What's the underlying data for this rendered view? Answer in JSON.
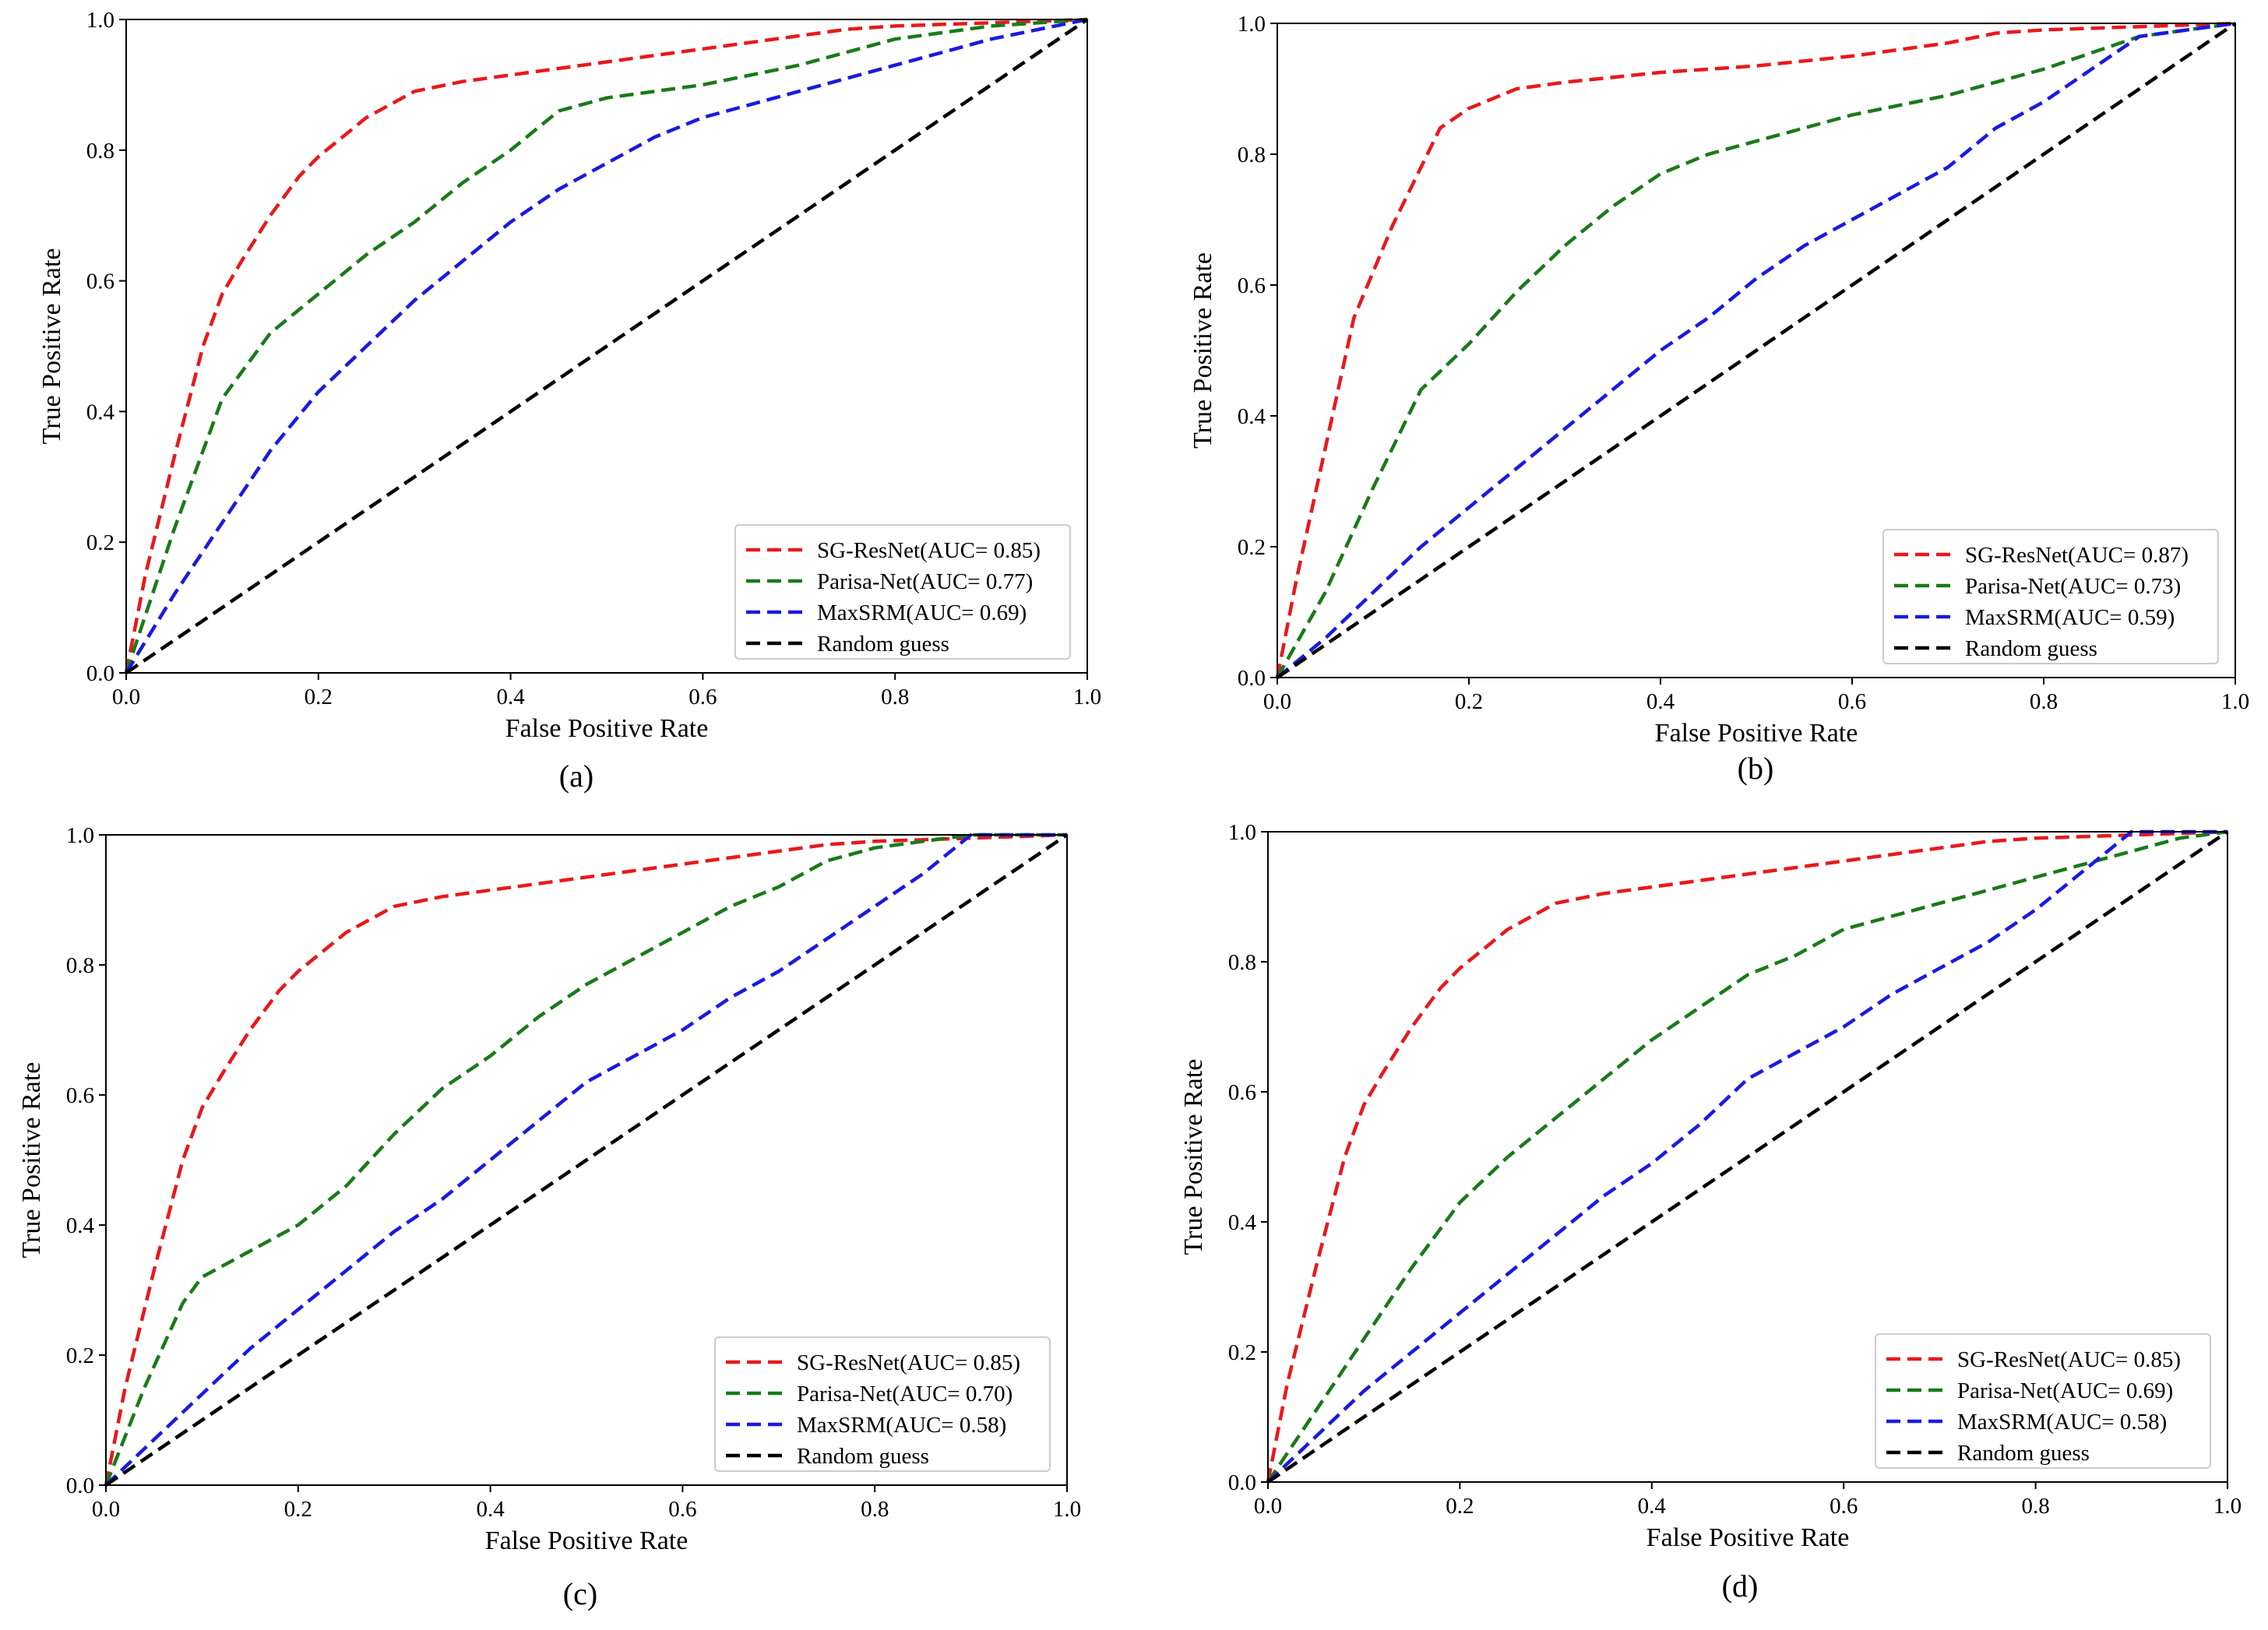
{
  "figure": {
    "panels": [
      {
        "caption": "(a)"
      },
      {
        "caption": "(b)"
      },
      {
        "caption": "(c)"
      },
      {
        "caption": "(d)"
      }
    ]
  },
  "chart_data": [
    {
      "type": "line",
      "panel": "(a)",
      "xlabel": "False Positive Rate",
      "ylabel": "True Positive Rate",
      "xlim": [
        0,
        1
      ],
      "ylim": [
        0,
        1
      ],
      "xticks": [
        "0.0",
        "0.2",
        "0.4",
        "0.6",
        "0.8",
        "1.0"
      ],
      "yticks": [
        "0.0",
        "0.2",
        "0.4",
        "0.6",
        "0.8",
        "1.0"
      ],
      "grid": false,
      "legend_position": "lower-right",
      "series": [
        {
          "name": "SG-ResNet(AUC= 0.85)",
          "color": "#e8191c",
          "x": [
            0,
            0.02,
            0.05,
            0.08,
            0.1,
            0.12,
            0.15,
            0.18,
            0.2,
            0.25,
            0.3,
            0.35,
            0.4,
            0.5,
            0.6,
            0.7,
            0.75,
            0.8,
            0.9,
            1.0
          ],
          "y": [
            0,
            0.15,
            0.33,
            0.5,
            0.58,
            0.63,
            0.7,
            0.76,
            0.79,
            0.85,
            0.89,
            0.905,
            0.915,
            0.935,
            0.955,
            0.975,
            0.985,
            0.99,
            0.995,
            1.0
          ]
        },
        {
          "name": "Parisa-Net(AUC= 0.77)",
          "color": "#1a7a1a",
          "x": [
            0,
            0.05,
            0.1,
            0.15,
            0.2,
            0.25,
            0.3,
            0.35,
            0.4,
            0.45,
            0.5,
            0.6,
            0.7,
            0.8,
            0.9,
            1.0
          ],
          "y": [
            0,
            0.22,
            0.42,
            0.52,
            0.58,
            0.64,
            0.69,
            0.75,
            0.8,
            0.86,
            0.88,
            0.9,
            0.93,
            0.97,
            0.99,
            1.0
          ]
        },
        {
          "name": "MaxSRM(AUC= 0.69)",
          "color": "#1a1ae0",
          "x": [
            0,
            0.05,
            0.1,
            0.15,
            0.2,
            0.25,
            0.3,
            0.35,
            0.4,
            0.45,
            0.5,
            0.55,
            0.6,
            0.7,
            0.8,
            0.9,
            1.0
          ],
          "y": [
            0,
            0.12,
            0.23,
            0.34,
            0.43,
            0.5,
            0.57,
            0.63,
            0.69,
            0.74,
            0.78,
            0.82,
            0.85,
            0.89,
            0.93,
            0.97,
            1.0
          ]
        },
        {
          "name": "Random guess",
          "color": "#000000",
          "x": [
            0,
            1
          ],
          "y": [
            0,
            1
          ]
        }
      ]
    },
    {
      "type": "line",
      "panel": "(b)",
      "xlabel": "False Positive Rate",
      "ylabel": "True Positive Rate",
      "xlim": [
        0,
        1
      ],
      "ylim": [
        0,
        1
      ],
      "xticks": [
        "0.0",
        "0.2",
        "0.4",
        "0.6",
        "0.8",
        "1.0"
      ],
      "yticks": [
        "0.0",
        "0.2",
        "0.4",
        "0.6",
        "0.8",
        "1.0"
      ],
      "grid": false,
      "legend_position": "lower-right",
      "series": [
        {
          "name": "SG-ResNet(AUC= 0.87)",
          "color": "#e8191c",
          "x": [
            0,
            0.02,
            0.05,
            0.08,
            0.1,
            0.12,
            0.15,
            0.17,
            0.2,
            0.25,
            0.3,
            0.4,
            0.5,
            0.6,
            0.7,
            0.75,
            0.8,
            0.9,
            1.0
          ],
          "y": [
            0,
            0.15,
            0.35,
            0.55,
            0.62,
            0.69,
            0.78,
            0.84,
            0.87,
            0.9,
            0.91,
            0.925,
            0.935,
            0.95,
            0.97,
            0.985,
            0.99,
            0.995,
            1.0
          ]
        },
        {
          "name": "Parisa-Net(AUC= 0.73)",
          "color": "#1a7a1a",
          "x": [
            0,
            0.05,
            0.1,
            0.15,
            0.2,
            0.25,
            0.3,
            0.35,
            0.4,
            0.45,
            0.5,
            0.6,
            0.7,
            0.8,
            0.9,
            1.0
          ],
          "y": [
            0,
            0.13,
            0.29,
            0.44,
            0.51,
            0.59,
            0.66,
            0.72,
            0.77,
            0.8,
            0.82,
            0.86,
            0.89,
            0.93,
            0.98,
            1.0
          ]
        },
        {
          "name": "MaxSRM(AUC= 0.59)",
          "color": "#1a1ae0",
          "x": [
            0,
            0.05,
            0.1,
            0.15,
            0.2,
            0.25,
            0.3,
            0.35,
            0.4,
            0.45,
            0.5,
            0.55,
            0.6,
            0.65,
            0.7,
            0.75,
            0.8,
            0.85,
            0.9,
            1.0
          ],
          "y": [
            0,
            0.06,
            0.13,
            0.2,
            0.26,
            0.32,
            0.38,
            0.44,
            0.5,
            0.55,
            0.61,
            0.66,
            0.7,
            0.74,
            0.78,
            0.84,
            0.88,
            0.93,
            0.98,
            1.0
          ]
        },
        {
          "name": "Random guess",
          "color": "#000000",
          "x": [
            0,
            1
          ],
          "y": [
            0,
            1
          ]
        }
      ]
    },
    {
      "type": "line",
      "panel": "(c)",
      "xlabel": "False Positive Rate",
      "ylabel": "True Positive Rate",
      "xlim": [
        0,
        1
      ],
      "ylim": [
        0,
        1
      ],
      "xticks": [
        "0.0",
        "0.2",
        "0.4",
        "0.6",
        "0.8",
        "1.0"
      ],
      "yticks": [
        "0.0",
        "0.2",
        "0.4",
        "0.6",
        "0.8",
        "1.0"
      ],
      "grid": false,
      "legend_position": "lower-right",
      "series": [
        {
          "name": "SG-ResNet(AUC= 0.85)",
          "color": "#e8191c",
          "x": [
            0,
            0.02,
            0.05,
            0.08,
            0.1,
            0.12,
            0.15,
            0.18,
            0.2,
            0.25,
            0.3,
            0.35,
            0.4,
            0.5,
            0.6,
            0.7,
            0.75,
            0.8,
            0.9,
            1.0
          ],
          "y": [
            0,
            0.15,
            0.33,
            0.5,
            0.58,
            0.63,
            0.7,
            0.76,
            0.79,
            0.85,
            0.89,
            0.905,
            0.915,
            0.935,
            0.955,
            0.975,
            0.985,
            0.99,
            0.995,
            1.0
          ]
        },
        {
          "name": "Parisa-Net(AUC= 0.70)",
          "color": "#1a7a1a",
          "x": [
            0,
            0.04,
            0.08,
            0.1,
            0.15,
            0.2,
            0.25,
            0.3,
            0.35,
            0.4,
            0.45,
            0.5,
            0.55,
            0.6,
            0.65,
            0.7,
            0.75,
            0.8,
            0.85,
            0.9,
            1.0
          ],
          "y": [
            0,
            0.15,
            0.28,
            0.32,
            0.36,
            0.4,
            0.46,
            0.54,
            0.61,
            0.66,
            0.72,
            0.77,
            0.81,
            0.85,
            0.89,
            0.92,
            0.96,
            0.98,
            0.99,
            1.0,
            1.0
          ]
        },
        {
          "name": "MaxSRM(AUC= 0.58)",
          "color": "#1a1ae0",
          "x": [
            0,
            0.05,
            0.1,
            0.15,
            0.2,
            0.25,
            0.3,
            0.35,
            0.4,
            0.45,
            0.5,
            0.55,
            0.6,
            0.65,
            0.7,
            0.75,
            0.8,
            0.85,
            0.9,
            1.0
          ],
          "y": [
            0,
            0.07,
            0.14,
            0.21,
            0.27,
            0.33,
            0.39,
            0.44,
            0.5,
            0.56,
            0.62,
            0.66,
            0.7,
            0.75,
            0.79,
            0.84,
            0.89,
            0.94,
            1.0,
            1.0
          ]
        },
        {
          "name": "Random guess",
          "color": "#000000",
          "x": [
            0,
            1
          ],
          "y": [
            0,
            1
          ]
        }
      ]
    },
    {
      "type": "line",
      "panel": "(d)",
      "xlabel": "False Positive Rate",
      "ylabel": "True Positive Rate",
      "xlim": [
        0,
        1
      ],
      "ylim": [
        0,
        1
      ],
      "xticks": [
        "0.0",
        "0.2",
        "0.4",
        "0.6",
        "0.8",
        "1.0"
      ],
      "yticks": [
        "0.0",
        "0.2",
        "0.4",
        "0.6",
        "0.8",
        "1.0"
      ],
      "grid": false,
      "legend_position": "lower-right",
      "series": [
        {
          "name": "SG-ResNet(AUC= 0.85)",
          "color": "#e8191c",
          "x": [
            0,
            0.02,
            0.05,
            0.08,
            0.1,
            0.12,
            0.15,
            0.18,
            0.2,
            0.25,
            0.3,
            0.35,
            0.4,
            0.5,
            0.6,
            0.7,
            0.75,
            0.8,
            0.9,
            1.0
          ],
          "y": [
            0,
            0.15,
            0.33,
            0.5,
            0.58,
            0.63,
            0.7,
            0.76,
            0.79,
            0.85,
            0.89,
            0.905,
            0.915,
            0.935,
            0.955,
            0.975,
            0.985,
            0.99,
            0.995,
            1.0
          ]
        },
        {
          "name": "Parisa-Net(AUC= 0.69)",
          "color": "#1a7a1a",
          "x": [
            0,
            0.05,
            0.1,
            0.15,
            0.2,
            0.25,
            0.3,
            0.35,
            0.4,
            0.45,
            0.5,
            0.55,
            0.6,
            0.65,
            0.7,
            0.75,
            0.8,
            0.85,
            0.9,
            0.95,
            1.0
          ],
          "y": [
            0,
            0.11,
            0.22,
            0.33,
            0.43,
            0.5,
            0.56,
            0.62,
            0.68,
            0.73,
            0.78,
            0.81,
            0.85,
            0.87,
            0.89,
            0.91,
            0.93,
            0.95,
            0.97,
            0.99,
            1.0
          ]
        },
        {
          "name": "MaxSRM(AUC= 0.58)",
          "color": "#1a1ae0",
          "x": [
            0,
            0.05,
            0.1,
            0.15,
            0.2,
            0.25,
            0.3,
            0.35,
            0.4,
            0.45,
            0.5,
            0.55,
            0.6,
            0.65,
            0.7,
            0.75,
            0.8,
            0.85,
            0.9,
            1.0
          ],
          "y": [
            0,
            0.07,
            0.14,
            0.2,
            0.26,
            0.32,
            0.38,
            0.44,
            0.49,
            0.55,
            0.62,
            0.66,
            0.7,
            0.75,
            0.79,
            0.83,
            0.88,
            0.94,
            1.0,
            1.0
          ]
        },
        {
          "name": "Random guess",
          "color": "#000000",
          "x": [
            0,
            1
          ],
          "y": [
            0,
            1
          ]
        }
      ]
    }
  ]
}
